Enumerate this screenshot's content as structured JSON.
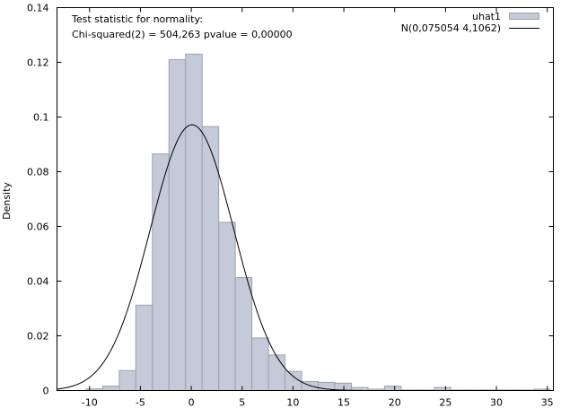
{
  "chart_data": {
    "type": "bar",
    "title": "",
    "xlabel": "",
    "ylabel": "Density",
    "xlim": [
      -13.2,
      35.6
    ],
    "ylim": [
      0,
      0.14
    ],
    "xticks": [
      -10,
      -5,
      0,
      5,
      10,
      15,
      20,
      25,
      30,
      35
    ],
    "xtick_labels": [
      "-10",
      "-5",
      "0",
      "5",
      "10",
      "15",
      "20",
      "25",
      "30",
      "35"
    ],
    "yticks": [
      0,
      0.02,
      0.04,
      0.06,
      0.08,
      0.1,
      0.12,
      0.14
    ],
    "ytick_labels": [
      "0",
      "0.02",
      "0.04",
      "0.06",
      "0.08",
      "0.1",
      "0.12",
      "0.14"
    ],
    "grid": false,
    "legend_position": "top-right",
    "annotation_lines": [
      "Test statistic for normality:",
      "Chi-squared(2) = 504,263 pvalue = 0,00000"
    ],
    "bin_width": 1.63,
    "bins": [
      {
        "start": -10.34,
        "density": 0.0006
      },
      {
        "start": -8.71,
        "density": 0.0016
      },
      {
        "start": -7.08,
        "density": 0.0073
      },
      {
        "start": -5.45,
        "density": 0.0312
      },
      {
        "start": -3.82,
        "density": 0.0865
      },
      {
        "start": -2.19,
        "density": 0.121
      },
      {
        "start": -0.56,
        "density": 0.123
      },
      {
        "start": 1.07,
        "density": 0.0965
      },
      {
        "start": 2.7,
        "density": 0.0615
      },
      {
        "start": 4.33,
        "density": 0.0413
      },
      {
        "start": 5.96,
        "density": 0.0192
      },
      {
        "start": 7.59,
        "density": 0.013
      },
      {
        "start": 9.22,
        "density": 0.007
      },
      {
        "start": 10.85,
        "density": 0.0033
      },
      {
        "start": 12.48,
        "density": 0.003
      },
      {
        "start": 14.11,
        "density": 0.0027
      },
      {
        "start": 15.74,
        "density": 0.0011
      },
      {
        "start": 17.37,
        "density": 0.0005
      },
      {
        "start": 19.0,
        "density": 0.0016
      },
      {
        "start": 20.63,
        "density": 0.0002
      },
      {
        "start": 22.26,
        "density": 0.0002
      },
      {
        "start": 23.89,
        "density": 0.0011
      },
      {
        "start": 25.52,
        "density": 0.0002
      },
      {
        "start": 27.15,
        "density": 0.0002
      },
      {
        "start": 28.78,
        "density": 0.0002
      },
      {
        "start": 30.41,
        "density": 0.0002
      },
      {
        "start": 32.04,
        "density": 0.0002
      },
      {
        "start": 33.67,
        "density": 0.0005
      }
    ],
    "series": [
      {
        "name": "uhat1",
        "type": "histogram",
        "color": "#c4cad8",
        "edge_color": "#9aa1b4"
      },
      {
        "name": "N(0,075054 4,1062)",
        "type": "normal-density",
        "mean": 0.075054,
        "sd": 4.1062,
        "color": "#000000"
      }
    ]
  }
}
